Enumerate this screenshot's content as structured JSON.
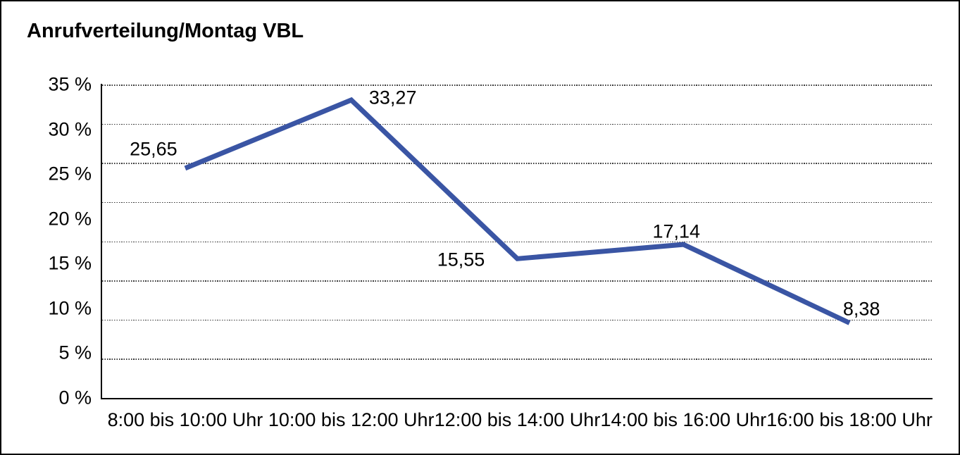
{
  "chart_data": {
    "type": "line",
    "title": "Anrufverteilung/Montag VBL",
    "categories": [
      "8:00 bis 10:00 Uhr",
      "10:00 bis 12:00 Uhr",
      "12:00 bis 14:00 Uhr",
      "14:00 bis 16:00 Uhr",
      "16:00 bis 18:00 Uhr"
    ],
    "values": [
      25.65,
      33.27,
      15.55,
      17.14,
      8.38
    ],
    "point_labels": [
      "25,65",
      "33,27",
      "15,55",
      "17,14",
      "8,38"
    ],
    "y_ticks": [
      {
        "value": 0,
        "label": "0 %"
      },
      {
        "value": 5,
        "label": "5 %"
      },
      {
        "value": 10,
        "label": "10 %"
      },
      {
        "value": 15,
        "label": "15 %"
      },
      {
        "value": 20,
        "label": "20 %"
      },
      {
        "value": 25,
        "label": "25 %"
      },
      {
        "value": 30,
        "label": "30 %"
      },
      {
        "value": 35,
        "label": "35 %"
      }
    ],
    "ylim": [
      0,
      35
    ],
    "xlabel": "",
    "ylabel": "",
    "legend": "none",
    "grid": "horizontal dotted lines, 8 divisions",
    "colors": {
      "line": "#3A55A4",
      "text": "#000000",
      "axis": "#000000",
      "grid_dots": "#383838",
      "background": "#FFFFFF",
      "border": "#000000"
    }
  }
}
